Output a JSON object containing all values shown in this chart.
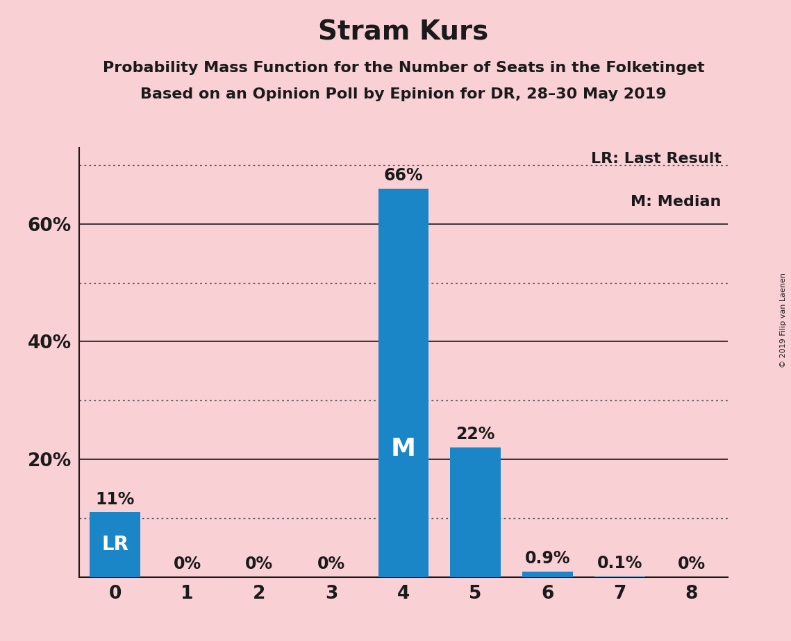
{
  "title": "Stram Kurs",
  "subtitle1": "Probability Mass Function for the Number of Seats in the Folketinget",
  "subtitle2": "Based on an Opinion Poll by Epinion for DR, 28–30 May 2019",
  "copyright": "© 2019 Filip van Laenen",
  "categories": [
    0,
    1,
    2,
    3,
    4,
    5,
    6,
    7,
    8
  ],
  "values": [
    0.11,
    0.0,
    0.0,
    0.0,
    0.66,
    0.22,
    0.009,
    0.001,
    0.0
  ],
  "bar_color": "#1a86c8",
  "background_color": "#f9d0d4",
  "label_texts": [
    "11%",
    "0%",
    "0%",
    "0%",
    "66%",
    "22%",
    "0.9%",
    "0.1%",
    "0%"
  ],
  "median_bar": 4,
  "lr_bar": 0,
  "legend_text1": "LR: Last Result",
  "legend_text2": "M: Median",
  "ytick_positions": [
    0.0,
    0.2,
    0.4,
    0.6
  ],
  "ytick_labels": [
    "",
    "20%",
    "40%",
    "60%"
  ],
  "ylim": [
    0,
    0.73
  ],
  "xlim": [
    -0.5,
    8.5
  ],
  "solid_grid_lines": [
    0.2,
    0.4,
    0.6
  ],
  "dotted_grid_lines": [
    0.1,
    0.3,
    0.5,
    0.7
  ],
  "title_fontsize": 28,
  "subtitle_fontsize": 16,
  "label_fontsize": 17,
  "tick_fontsize": 19,
  "legend_fontsize": 16,
  "bar_width": 0.7,
  "m_fontsize": 26,
  "lr_fontsize": 20,
  "copyright_fontsize": 8
}
